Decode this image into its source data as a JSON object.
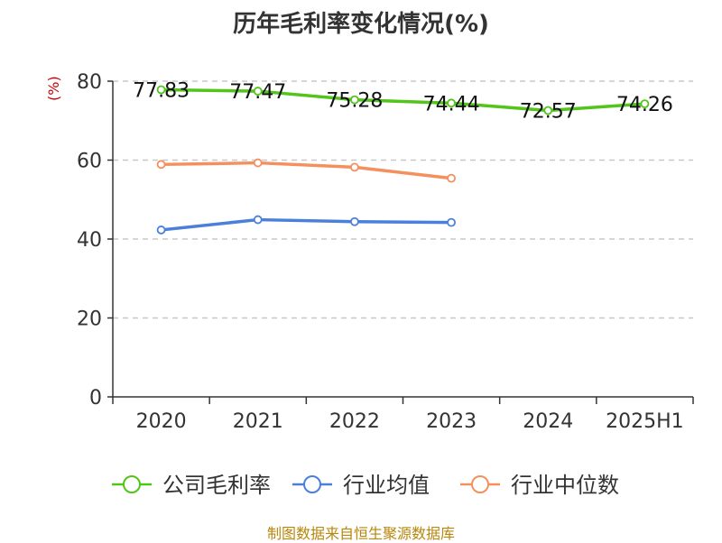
{
  "chart_data": {
    "type": "line",
    "title": "历年毛利率变化情况(%)",
    "unit_label": "(%)",
    "categories": [
      "2020",
      "2021",
      "2022",
      "2023",
      "2024",
      "2025H1"
    ],
    "ylim": [
      0,
      80
    ],
    "yticks": [
      "0",
      "20",
      "40",
      "60",
      "80"
    ],
    "grid": true,
    "legend_position": "bottom",
    "series": [
      {
        "name": "公司毛利率",
        "color": "#52c41a",
        "values": [
          77.83,
          77.47,
          75.28,
          74.44,
          72.57,
          74.26
        ],
        "labels": [
          "77.83",
          "77.47",
          "75.28",
          "74.44",
          "72.57",
          "74.26"
        ]
      },
      {
        "name": "行业均值",
        "color": "#4a7fdc",
        "values": [
          42.3,
          44.9,
          44.4,
          44.2,
          null,
          null
        ]
      },
      {
        "name": "行业中位数",
        "color": "#f4905e",
        "values": [
          58.9,
          59.3,
          58.2,
          55.4,
          null,
          null
        ]
      }
    ]
  },
  "source": "制图数据来自恒生聚源数据库"
}
